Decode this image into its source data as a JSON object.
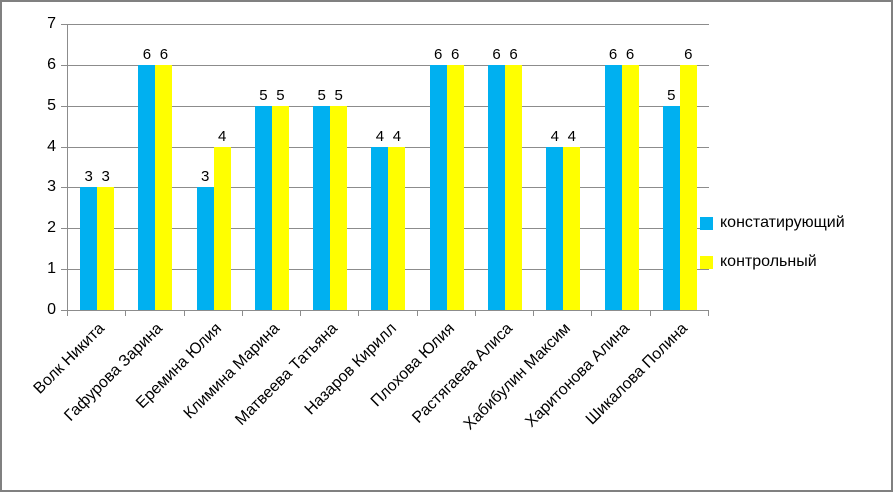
{
  "chart_data": {
    "type": "bar",
    "title": "",
    "xlabel": "",
    "ylabel": "",
    "categories": [
      "Волк Никита",
      "Гафурова Зарина",
      "Еремина Юлия",
      "Климина Марина",
      "Матвеева Татьяна",
      "Назаров Кирилл",
      "Плохова Юлия",
      "Растягаева Алиса",
      "Хабибулин Максим",
      "Харитонова Алина",
      "Шикалова Полина"
    ],
    "series": [
      {
        "name": "констатирующий",
        "color": "#00B0F0",
        "values": [
          3,
          6,
          3,
          5,
          5,
          4,
          6,
          6,
          4,
          6,
          5
        ]
      },
      {
        "name": "контрольный",
        "color": "#FFFF00",
        "values": [
          3,
          6,
          4,
          5,
          5,
          4,
          6,
          6,
          4,
          6,
          6
        ]
      }
    ],
    "ylim": [
      0,
      7
    ],
    "yticks": [
      0,
      1,
      2,
      3,
      4,
      5,
      6,
      7
    ],
    "grid": true,
    "data_labels": true,
    "legend_position": "right",
    "colors": {
      "gridline": "#8C8C8C",
      "axis": "#8C8C8C",
      "frame_border": "#808080",
      "background": "#FFFFFF",
      "label_text": "#000000"
    }
  }
}
